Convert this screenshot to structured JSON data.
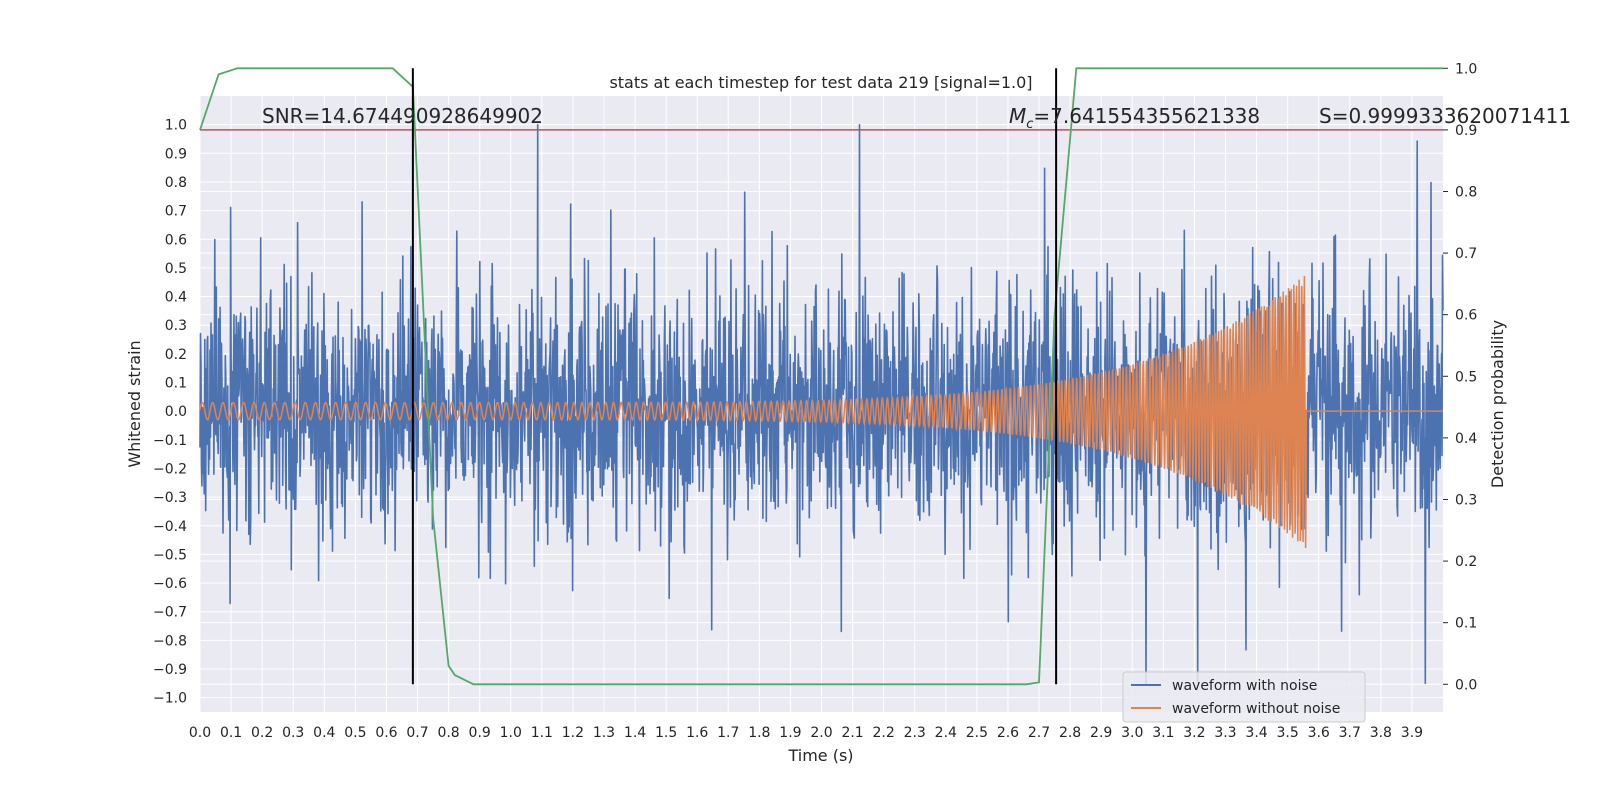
{
  "chart_data": {
    "type": "line",
    "title": "stats at each timestep for test data 219 [signal=1.0]",
    "xlabel": "Time (s)",
    "ylabel_left": "Whitened strain",
    "ylabel_right": "Detection probability",
    "xlim": [
      0.0,
      4.0
    ],
    "ylim_left": [
      -1.05,
      1.1
    ],
    "ylim_right": [
      -0.045,
      0.955
    ],
    "grid": true,
    "x_tick_labels": [
      "0.0",
      "0.1",
      "0.2",
      "0.3",
      "0.4",
      "0.5",
      "0.6",
      "0.7",
      "0.8",
      "0.9",
      "1.0",
      "1.1",
      "1.2",
      "1.3",
      "1.4",
      "1.5",
      "1.6",
      "1.7",
      "1.8",
      "1.9",
      "2.0",
      "2.1",
      "2.2",
      "2.3",
      "2.4",
      "2.5",
      "2.6",
      "2.7",
      "2.8",
      "2.9",
      "3.0",
      "3.1",
      "3.2",
      "3.3",
      "3.4",
      "3.5",
      "3.6",
      "3.7",
      "3.8",
      "3.9"
    ],
    "y_left_tick_labels": [
      "1.0",
      "0.9",
      "0.8",
      "0.7",
      "0.6",
      "0.5",
      "0.4",
      "0.3",
      "0.2",
      "0.1",
      "0.0",
      "−0.1",
      "−0.2",
      "−0.3",
      "−0.4",
      "−0.5",
      "−0.6",
      "−0.7",
      "−0.8",
      "−0.9",
      "−1.0"
    ],
    "y_right_tick_labels": [
      "1.0",
      "0.9",
      "0.8",
      "0.7",
      "0.6",
      "0.5",
      "0.4",
      "0.3",
      "0.2",
      "0.1",
      "0.0"
    ],
    "annotations": {
      "snr": "SNR=14.674490928649902",
      "mc": "M",
      "mc_sub": "c",
      "mc_value": "=7.641554355621338",
      "s": "S=0.9999333620071411"
    },
    "threshold": {
      "value": 0.9,
      "color": "#c44e52"
    },
    "vertical_lines": [
      0.685,
      2.755
    ],
    "series": [
      {
        "name": "waveform with noise",
        "color": "#4c72b0",
        "axis": "left",
        "description": "noisy whitened strain, amplitude roughly within -0.95..1.0 over 0..4 s"
      },
      {
        "name": "waveform without noise",
        "color": "#dd8452",
        "axis": "left",
        "chirp_start": 0.0,
        "chirp_end": 3.56,
        "start_amplitude": 0.03,
        "peak_amplitude": 0.48,
        "start_frequency_hz": 30,
        "end_frequency_hz": 120
      },
      {
        "name": "detection probability",
        "color": "#55a868",
        "axis": "right",
        "x": [
          0.0,
          0.06,
          0.12,
          0.62,
          0.685,
          0.75,
          0.8,
          0.82,
          0.88,
          2.62,
          2.66,
          2.7,
          2.75,
          2.82
        ],
        "y": [
          0.9,
          0.99,
          1.0,
          1.0,
          0.97,
          0.27,
          0.03,
          0.015,
          0.0,
          0.0,
          0.0,
          0.003,
          0.6,
          1.0
        ]
      }
    ],
    "legend": {
      "position": "bottom-right",
      "entries": [
        "waveform with noise",
        "waveform without noise"
      ]
    }
  }
}
